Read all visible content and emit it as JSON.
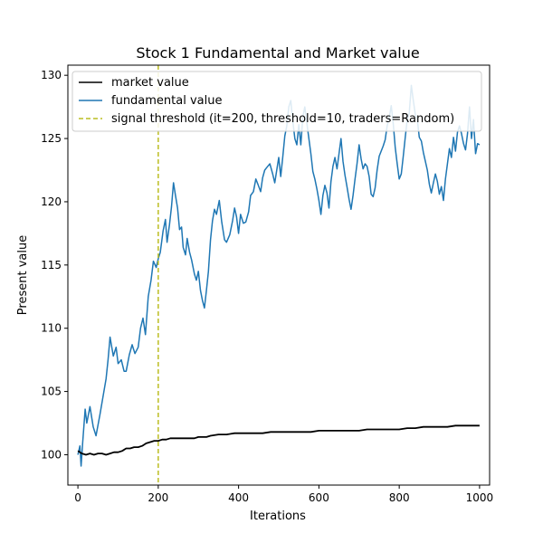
{
  "chart_data": {
    "type": "line",
    "title": "Stock 1 Fundamental and Market value",
    "xlabel": "Iterations",
    "ylabel": "Present value",
    "xlim": [
      -25,
      1025
    ],
    "ylim": [
      97.6,
      130.8
    ],
    "xticks": [
      0,
      200,
      400,
      600,
      800,
      1000
    ],
    "yticks": [
      100,
      105,
      110,
      115,
      120,
      125,
      130
    ],
    "grid": false,
    "legend_position": "top-left",
    "series": [
      {
        "name": "market value",
        "color": "#000000",
        "style": "solid",
        "points": [
          [
            0,
            100.3
          ],
          [
            10,
            100.1
          ],
          [
            20,
            100.0
          ],
          [
            30,
            100.1
          ],
          [
            40,
            100.0
          ],
          [
            50,
            100.1
          ],
          [
            60,
            100.1
          ],
          [
            70,
            100.0
          ],
          [
            80,
            100.1
          ],
          [
            90,
            100.2
          ],
          [
            100,
            100.2
          ],
          [
            110,
            100.3
          ],
          [
            120,
            100.5
          ],
          [
            130,
            100.5
          ],
          [
            140,
            100.6
          ],
          [
            150,
            100.6
          ],
          [
            160,
            100.7
          ],
          [
            170,
            100.9
          ],
          [
            180,
            101.0
          ],
          [
            190,
            101.1
          ],
          [
            200,
            101.1
          ],
          [
            210,
            101.2
          ],
          [
            220,
            101.2
          ],
          [
            230,
            101.3
          ],
          [
            250,
            101.3
          ],
          [
            270,
            101.3
          ],
          [
            290,
            101.3
          ],
          [
            300,
            101.4
          ],
          [
            320,
            101.4
          ],
          [
            330,
            101.5
          ],
          [
            350,
            101.6
          ],
          [
            370,
            101.6
          ],
          [
            390,
            101.7
          ],
          [
            400,
            101.7
          ],
          [
            420,
            101.7
          ],
          [
            440,
            101.7
          ],
          [
            460,
            101.7
          ],
          [
            480,
            101.8
          ],
          [
            500,
            101.8
          ],
          [
            520,
            101.8
          ],
          [
            540,
            101.8
          ],
          [
            560,
            101.8
          ],
          [
            580,
            101.8
          ],
          [
            600,
            101.9
          ],
          [
            620,
            101.9
          ],
          [
            640,
            101.9
          ],
          [
            660,
            101.9
          ],
          [
            680,
            101.9
          ],
          [
            700,
            101.9
          ],
          [
            720,
            102.0
          ],
          [
            740,
            102.0
          ],
          [
            760,
            102.0
          ],
          [
            780,
            102.0
          ],
          [
            800,
            102.0
          ],
          [
            820,
            102.1
          ],
          [
            840,
            102.1
          ],
          [
            860,
            102.2
          ],
          [
            880,
            102.2
          ],
          [
            900,
            102.2
          ],
          [
            920,
            102.2
          ],
          [
            940,
            102.3
          ],
          [
            960,
            102.3
          ],
          [
            980,
            102.3
          ],
          [
            1000,
            102.3
          ]
        ]
      },
      {
        "name": "fundamental value",
        "color": "#1f77b4",
        "style": "solid",
        "points": [
          [
            0,
            100.0
          ],
          [
            5,
            100.7
          ],
          [
            8,
            99.1
          ],
          [
            12,
            101.0
          ],
          [
            18,
            103.6
          ],
          [
            22,
            102.5
          ],
          [
            30,
            103.8
          ],
          [
            38,
            102.2
          ],
          [
            45,
            101.5
          ],
          [
            55,
            103.2
          ],
          [
            62,
            104.5
          ],
          [
            70,
            106.0
          ],
          [
            75,
            107.5
          ],
          [
            80,
            109.3
          ],
          [
            88,
            107.8
          ],
          [
            95,
            108.5
          ],
          [
            100,
            107.2
          ],
          [
            108,
            107.5
          ],
          [
            115,
            106.6
          ],
          [
            120,
            106.6
          ],
          [
            128,
            107.9
          ],
          [
            135,
            108.7
          ],
          [
            142,
            108.0
          ],
          [
            150,
            108.5
          ],
          [
            156,
            110.0
          ],
          [
            162,
            110.8
          ],
          [
            168,
            109.5
          ],
          [
            175,
            112.5
          ],
          [
            182,
            113.8
          ],
          [
            188,
            115.3
          ],
          [
            195,
            114.8
          ],
          [
            200,
            115.5
          ],
          [
            205,
            116.0
          ],
          [
            212,
            117.7
          ],
          [
            218,
            118.6
          ],
          [
            222,
            116.8
          ],
          [
            228,
            118.2
          ],
          [
            233,
            119.6
          ],
          [
            238,
            121.5
          ],
          [
            243,
            120.5
          ],
          [
            248,
            119.5
          ],
          [
            253,
            117.8
          ],
          [
            258,
            118.0
          ],
          [
            262,
            116.4
          ],
          [
            268,
            115.8
          ],
          [
            272,
            117.1
          ],
          [
            278,
            116.0
          ],
          [
            283,
            115.4
          ],
          [
            290,
            114.3
          ],
          [
            295,
            113.8
          ],
          [
            300,
            114.5
          ],
          [
            305,
            113.0
          ],
          [
            310,
            112.2
          ],
          [
            315,
            111.6
          ],
          [
            320,
            113.0
          ],
          [
            325,
            114.5
          ],
          [
            330,
            117.0
          ],
          [
            335,
            118.5
          ],
          [
            340,
            119.4
          ],
          [
            345,
            119.0
          ],
          [
            352,
            120.1
          ],
          [
            358,
            118.4
          ],
          [
            365,
            117.0
          ],
          [
            370,
            116.8
          ],
          [
            378,
            117.4
          ],
          [
            385,
            118.5
          ],
          [
            390,
            119.5
          ],
          [
            395,
            118.8
          ],
          [
            400,
            117.5
          ],
          [
            405,
            119.0
          ],
          [
            412,
            118.3
          ],
          [
            418,
            118.4
          ],
          [
            425,
            119.2
          ],
          [
            430,
            120.5
          ],
          [
            437,
            120.8
          ],
          [
            443,
            121.8
          ],
          [
            448,
            121.4
          ],
          [
            455,
            120.8
          ],
          [
            460,
            121.9
          ],
          [
            465,
            122.5
          ],
          [
            470,
            122.7
          ],
          [
            478,
            123.0
          ],
          [
            485,
            122.2
          ],
          [
            490,
            121.5
          ],
          [
            495,
            122.5
          ],
          [
            500,
            123.5
          ],
          [
            505,
            122.0
          ],
          [
            510,
            123.5
          ],
          [
            515,
            125.2
          ],
          [
            520,
            126.0
          ],
          [
            525,
            127.5
          ],
          [
            530,
            128.0
          ],
          [
            535,
            126.4
          ],
          [
            540,
            125.0
          ],
          [
            545,
            124.5
          ],
          [
            550,
            126.1
          ],
          [
            555,
            124.5
          ],
          [
            560,
            126.7
          ],
          [
            565,
            127.5
          ],
          [
            570,
            126.2
          ],
          [
            575,
            125.0
          ],
          [
            580,
            123.8
          ],
          [
            585,
            122.4
          ],
          [
            590,
            121.8
          ],
          [
            595,
            121.0
          ],
          [
            600,
            120.1
          ],
          [
            605,
            119.0
          ],
          [
            610,
            120.5
          ],
          [
            615,
            121.3
          ],
          [
            620,
            120.7
          ],
          [
            625,
            119.5
          ],
          [
            630,
            121.6
          ],
          [
            635,
            122.8
          ],
          [
            640,
            123.5
          ],
          [
            645,
            122.6
          ],
          [
            650,
            123.8
          ],
          [
            655,
            125.0
          ],
          [
            660,
            123.2
          ],
          [
            665,
            122.1
          ],
          [
            670,
            121.2
          ],
          [
            675,
            120.2
          ],
          [
            680,
            119.4
          ],
          [
            685,
            120.5
          ],
          [
            690,
            121.8
          ],
          [
            695,
            123.0
          ],
          [
            700,
            124.5
          ],
          [
            705,
            123.4
          ],
          [
            710,
            122.6
          ],
          [
            715,
            123.0
          ],
          [
            720,
            122.8
          ],
          [
            725,
            122.0
          ],
          [
            730,
            120.6
          ],
          [
            735,
            120.4
          ],
          [
            740,
            121.1
          ],
          [
            745,
            122.5
          ],
          [
            750,
            123.6
          ],
          [
            755,
            124.0
          ],
          [
            760,
            124.4
          ],
          [
            765,
            124.9
          ],
          [
            770,
            126.0
          ],
          [
            775,
            126.6
          ],
          [
            780,
            127.6
          ],
          [
            785,
            126.2
          ],
          [
            790,
            124.3
          ],
          [
            795,
            123.0
          ],
          [
            800,
            121.8
          ],
          [
            805,
            122.2
          ],
          [
            810,
            123.6
          ],
          [
            815,
            125.1
          ],
          [
            820,
            126.5
          ],
          [
            825,
            127.0
          ],
          [
            830,
            129.2
          ],
          [
            835,
            128.0
          ],
          [
            840,
            126.9
          ],
          [
            845,
            126.5
          ],
          [
            850,
            125.1
          ],
          [
            855,
            124.8
          ],
          [
            860,
            123.9
          ],
          [
            865,
            123.2
          ],
          [
            870,
            122.5
          ],
          [
            875,
            121.4
          ],
          [
            880,
            120.7
          ],
          [
            885,
            121.5
          ],
          [
            890,
            122.2
          ],
          [
            895,
            121.6
          ],
          [
            900,
            120.6
          ],
          [
            905,
            121.2
          ],
          [
            910,
            120.1
          ],
          [
            915,
            121.8
          ],
          [
            920,
            123.0
          ],
          [
            925,
            124.2
          ],
          [
            930,
            123.5
          ],
          [
            935,
            125.1
          ],
          [
            940,
            124.0
          ],
          [
            945,
            125.5
          ],
          [
            950,
            126.0
          ],
          [
            955,
            125.4
          ],
          [
            960,
            124.6
          ],
          [
            965,
            124.1
          ],
          [
            970,
            125.4
          ],
          [
            975,
            127.5
          ],
          [
            980,
            125.0
          ],
          [
            985,
            126.5
          ],
          [
            990,
            123.8
          ],
          [
            995,
            124.6
          ],
          [
            1000,
            124.5
          ]
        ]
      },
      {
        "name": "signal threshold (it=200, threshold=10, traders=Random)",
        "color": "#bcbd22",
        "style": "dashed",
        "vertical_line_x": 200
      }
    ]
  }
}
